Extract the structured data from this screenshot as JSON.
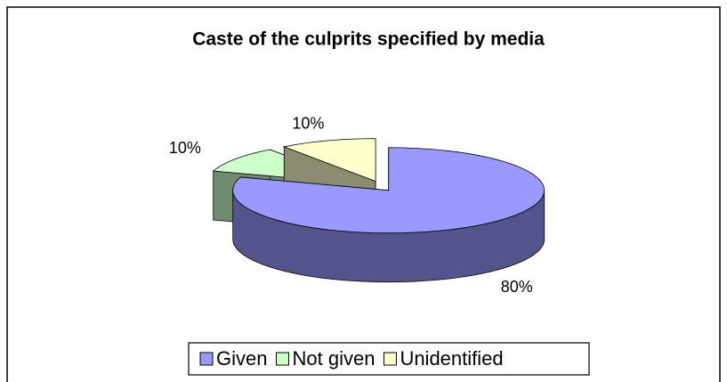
{
  "chart_data": {
    "type": "pie",
    "title": "Caste of the culprits specified by media",
    "categories": [
      "Given",
      "Not given",
      "Unidentified"
    ],
    "values": [
      80,
      10,
      10
    ],
    "value_labels": [
      "80%",
      "10%",
      "10%"
    ],
    "colors": [
      "#9999ff",
      "#ccffcc",
      "#ffffcc"
    ],
    "legend": "bottom"
  }
}
